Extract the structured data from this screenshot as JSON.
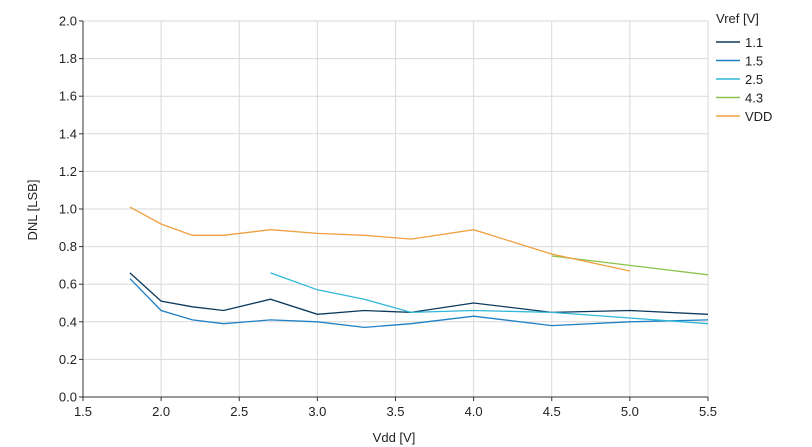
{
  "chart_data": {
    "type": "line",
    "title": "",
    "xlabel": "Vdd [V]",
    "ylabel": "DNL [LSB]",
    "xlim": [
      1.5,
      5.5
    ],
    "ylim": [
      0.0,
      2.0
    ],
    "xticks": [
      "1.5",
      "2.0",
      "2.5",
      "3.0",
      "3.5",
      "4.0",
      "4.5",
      "5.0",
      "5.5"
    ],
    "yticks": [
      "0.0",
      "0.2",
      "0.4",
      "0.6",
      "0.8",
      "1.0",
      "1.2",
      "1.4",
      "1.6",
      "1.8",
      "2.0"
    ],
    "grid": true,
    "legend_title": "Vref [V]",
    "legend_position": "top-right",
    "series": [
      {
        "name": "1.1",
        "color": "#0d3a5c",
        "x": [
          1.8,
          2.0,
          2.2,
          2.4,
          2.7,
          3.0,
          3.3,
          3.6,
          4.0,
          4.5,
          5.0,
          5.5
        ],
        "y": [
          0.66,
          0.51,
          0.48,
          0.46,
          0.52,
          0.44,
          0.46,
          0.45,
          0.5,
          0.45,
          0.46,
          0.44
        ]
      },
      {
        "name": "1.5",
        "color": "#1f80c4",
        "x": [
          1.8,
          2.0,
          2.2,
          2.4,
          2.7,
          3.0,
          3.3,
          3.6,
          4.0,
          4.5,
          5.0,
          5.5
        ],
        "y": [
          0.63,
          0.46,
          0.41,
          0.39,
          0.41,
          0.4,
          0.37,
          0.39,
          0.43,
          0.38,
          0.4,
          0.41
        ]
      },
      {
        "name": "2.5",
        "color": "#2fb8d8",
        "x": [
          2.7,
          3.0,
          3.3,
          3.6,
          4.0,
          4.5,
          5.0,
          5.5
        ],
        "y": [
          0.66,
          0.57,
          0.52,
          0.45,
          0.46,
          0.45,
          0.42,
          0.39
        ]
      },
      {
        "name": "4.3",
        "color": "#8bc34a",
        "x": [
          4.5,
          5.0,
          5.5
        ],
        "y": [
          0.75,
          0.7,
          0.65
        ]
      },
      {
        "name": "VDD",
        "color": "#f0a040",
        "x": [
          1.8,
          2.0,
          2.2,
          2.4,
          2.7,
          3.0,
          3.3,
          3.6,
          4.0,
          4.5,
          5.0
        ],
        "y": [
          1.01,
          0.92,
          0.86,
          0.86,
          0.89,
          0.87,
          0.86,
          0.84,
          0.89,
          0.76,
          0.67
        ]
      }
    ]
  }
}
